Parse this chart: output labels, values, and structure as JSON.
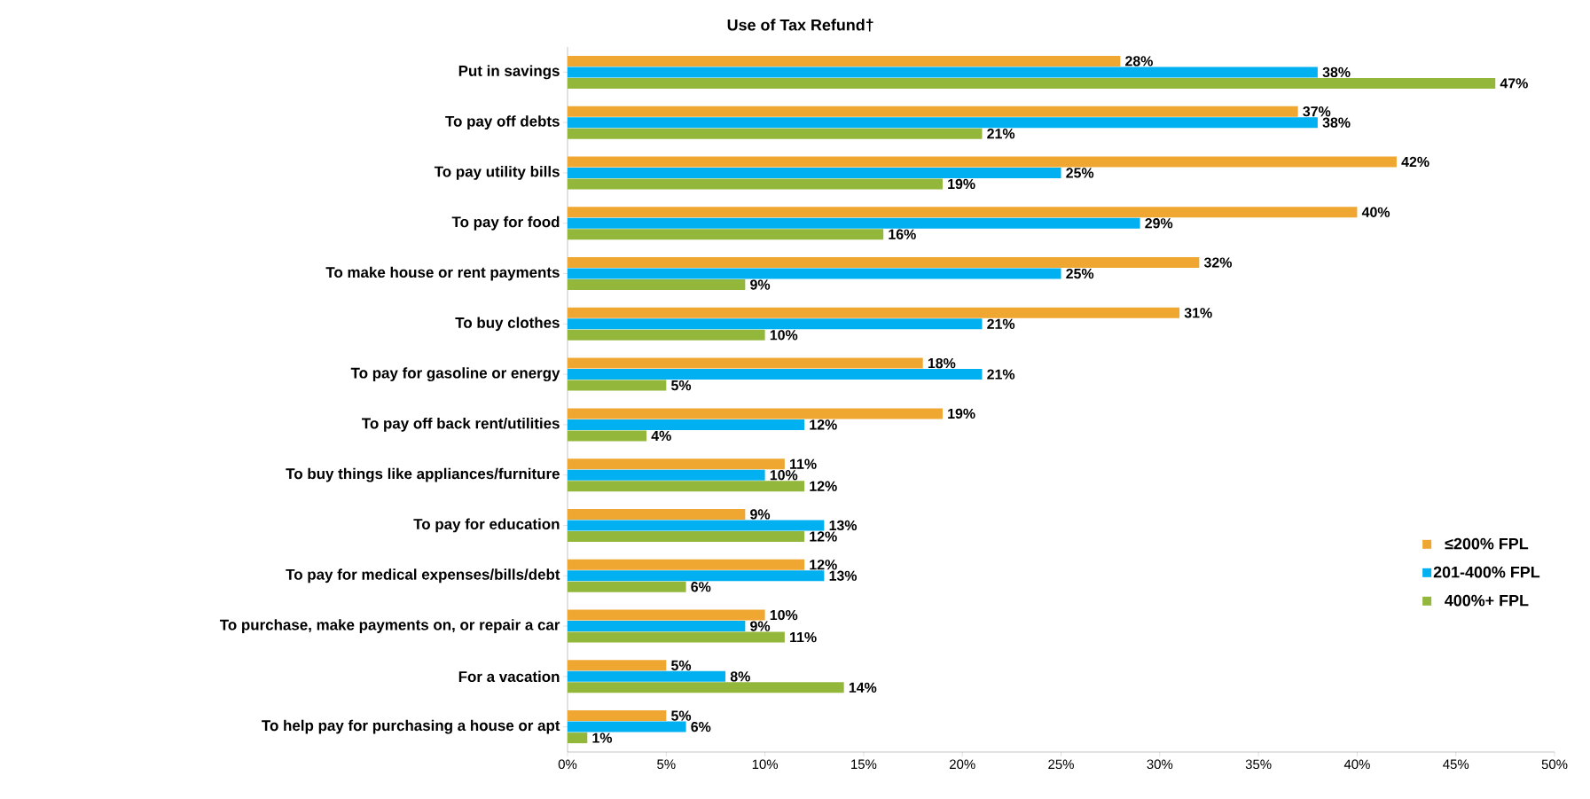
{
  "chart_data": {
    "type": "bar",
    "orientation": "horizontal",
    "title": "Use of Tax Refund†",
    "categories": [
      "Put in savings",
      "To pay off debts",
      "To pay utility bills",
      "To pay for food",
      "To make house or rent payments",
      "To buy clothes",
      "To pay for gasoline or energy",
      "To pay off back rent/utilities",
      "To buy things like appliances/furniture",
      "To pay for education",
      "To pay for medical expenses/bills/debt",
      "To purchase, make payments on, or repair a car",
      "For a vacation",
      "To help pay for purchasing a house or apt"
    ],
    "series": [
      {
        "name": "≤200% FPL",
        "color": "#f0a732",
        "values": [
          28,
          37,
          42,
          40,
          32,
          31,
          18,
          19,
          11,
          9,
          12,
          10,
          5,
          5
        ],
        "value_labels": [
          "28%",
          "37%",
          "42%",
          "40%",
          "32%",
          "31%",
          "18%",
          "19%",
          "11%",
          "9%",
          "12%",
          "10%",
          "5%",
          "5%"
        ]
      },
      {
        "name": "201-400% FPL",
        "color": "#00b0f0",
        "values": [
          38,
          38,
          25,
          29,
          25,
          21,
          21,
          12,
          10,
          13,
          13,
          9,
          8,
          6
        ],
        "value_labels": [
          "38%",
          "38%",
          "25%",
          "29%",
          "25%",
          "21%",
          "21%",
          "12%",
          "10%",
          "13%",
          "13%",
          "9%",
          "8%",
          "6%"
        ]
      },
      {
        "name": "400%+ FPL",
        "color": "#92b73a",
        "values": [
          47,
          21,
          19,
          16,
          9,
          10,
          5,
          4,
          12,
          12,
          6,
          11,
          14,
          1
        ],
        "value_labels": [
          "47%",
          "21%",
          "19%",
          "16%",
          "9%",
          "10%",
          "5%",
          "4%",
          "12%",
          "12%",
          "6%",
          "11%",
          "14%",
          "1%"
        ]
      }
    ],
    "xlim": [
      0,
      50
    ],
    "xticks": [
      {
        "value": 0,
        "label": "0%"
      },
      {
        "value": 5,
        "label": "5%"
      },
      {
        "value": 10,
        "label": "10%"
      },
      {
        "value": 15,
        "label": "15%"
      },
      {
        "value": 20,
        "label": "20%"
      },
      {
        "value": 25,
        "label": "25%"
      },
      {
        "value": 30,
        "label": "30%"
      },
      {
        "value": 35,
        "label": "35%"
      },
      {
        "value": 40,
        "label": "40%"
      },
      {
        "value": 45,
        "label": "45%"
      },
      {
        "value": 50,
        "label": "50%"
      }
    ],
    "legend": "bottom right"
  }
}
